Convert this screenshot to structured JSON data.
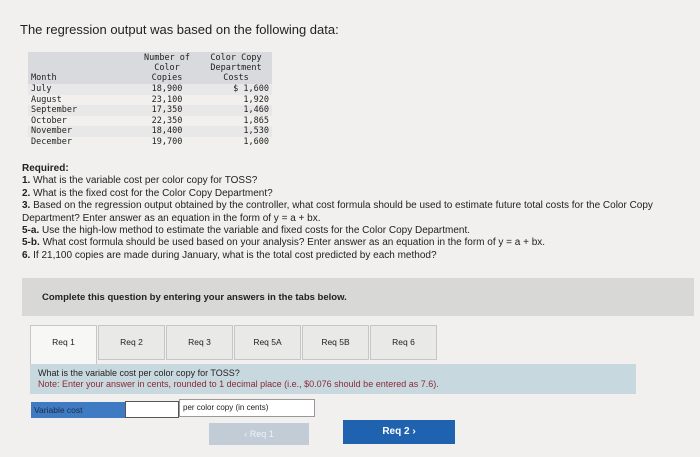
{
  "title": "The regression output was based on the following data:",
  "table": {
    "headers": [
      "Month",
      "Number of Color Copies",
      "Color Copy Department Costs"
    ],
    "rows": [
      [
        "July",
        "18,900",
        "$ 1,600"
      ],
      [
        "August",
        "23,100",
        "1,920"
      ],
      [
        "September",
        "17,350",
        "1,460"
      ],
      [
        "October",
        "22,350",
        "1,865"
      ],
      [
        "November",
        "18,400",
        "1,530"
      ],
      [
        "December",
        "19,700",
        "1,600"
      ]
    ]
  },
  "required": {
    "heading": "Required:",
    "items": [
      {
        "num": "1.",
        "text": "What is the variable cost per color copy for TOSS?"
      },
      {
        "num": "2.",
        "text": "What is the fixed cost for the Color Copy Department?"
      },
      {
        "num": "3.",
        "text": "Based on the regression output obtained by the controller, what cost formula should be used to estimate future total costs for the Color Copy Department? Enter answer as an equation in the form of y = a + bx."
      },
      {
        "num": "5-a.",
        "text": "Use the high-low method to estimate the variable and fixed costs for the Color Copy Department."
      },
      {
        "num": "5-b.",
        "text": "What cost formula should be used based on your analysis? Enter answer as an equation in the form of y = a + bx."
      },
      {
        "num": "6.",
        "text": "If 21,100 copies are made during January, what is the total cost predicted by each method?"
      }
    ]
  },
  "banner": "Complete this question by entering your answers in the tabs below.",
  "tabs": [
    "Req 1",
    "Req 2",
    "Req 3",
    "Req 5A",
    "Req 5B",
    "Req 6"
  ],
  "active_tab": "Req 1",
  "question": "What is the variable cost per color copy for TOSS?",
  "note": "Note: Enter your answer in cents, rounded to 1 decimal place (i.e., $0.076 should be entered as 7.6).",
  "answer": {
    "label": "Variable cost",
    "value": "",
    "unit": "per color copy (in cents)"
  },
  "nav": {
    "prev": "‹  Req 1",
    "next": "Req 2  ›"
  },
  "colors": {
    "primary": "#1f63b0",
    "label_bg": "#3f7bc3",
    "question_bg": "#c8d8df",
    "note": "#8a2a35"
  }
}
